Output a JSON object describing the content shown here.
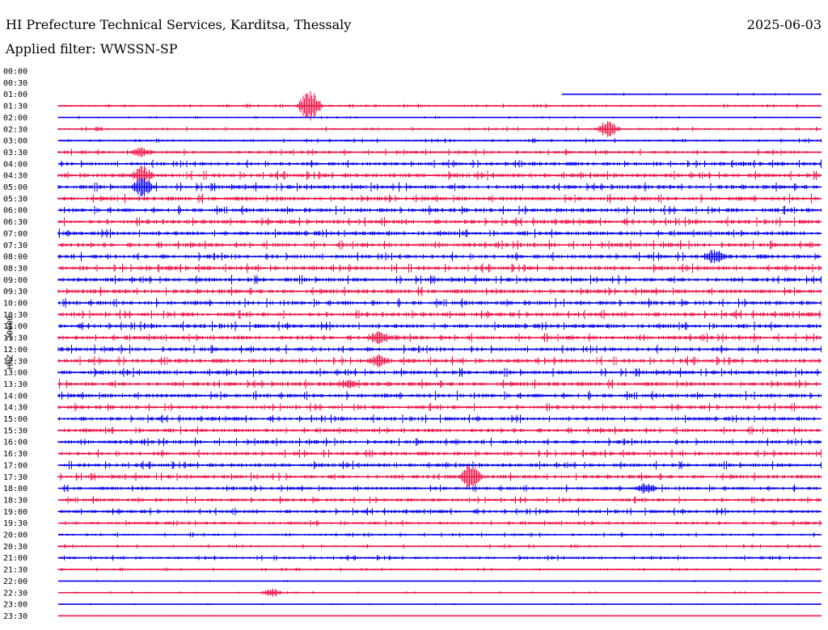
{
  "header": {
    "title": "HI Prefecture Technical Services, Karditsa, Thessaly",
    "date": "2025-06-03",
    "filter": "Applied filter: WWSSN-SP"
  },
  "colors": {
    "even_row": "#0000ee",
    "odd_row": "#ee1144"
  },
  "chart_data": {
    "type": "line",
    "title": "HI Prefecture Technical Services, Karditsa, Thessaly",
    "subtitle": "Applied filter: WWSSN-SP",
    "ylabel": "HNZ - 20000",
    "xlabel": "",
    "grid": false,
    "legend": "none",
    "row_labels": [
      "00:00",
      "00:30",
      "01:00",
      "01:30",
      "02:00",
      "02:30",
      "03:00",
      "03:30",
      "04:00",
      "04:30",
      "05:00",
      "05:30",
      "06:00",
      "06:30",
      "07:00",
      "07:30",
      "08:00",
      "08:30",
      "09:00",
      "09:30",
      "10:00",
      "10:30",
      "11:00",
      "11:30",
      "12:00",
      "12:30",
      "13:00",
      "13:30",
      "14:00",
      "14:30",
      "15:00",
      "15:30",
      "16:00",
      "16:30",
      "17:00",
      "17:30",
      "18:00",
      "18:30",
      "19:00",
      "19:30",
      "20:00",
      "20:30",
      "21:00",
      "21:30",
      "22:00",
      "22:30",
      "23:00",
      "23:30"
    ],
    "row_activity": [
      0,
      0,
      0.3,
      0.5,
      0.3,
      0.5,
      0.5,
      0.7,
      0.9,
      1,
      1,
      1,
      1,
      1,
      1,
      1,
      1,
      1,
      1,
      1,
      1,
      1,
      1,
      1,
      1,
      1,
      1,
      1,
      1,
      0.9,
      0.9,
      0.9,
      0.9,
      0.9,
      0.9,
      0.9,
      0.8,
      0.8,
      0.8,
      0.7,
      0.5,
      0.5,
      0.6,
      0.4,
      0.2,
      0.3,
      0.2,
      0.1
    ],
    "row_start_fraction": [
      1,
      1,
      0.66,
      0,
      0,
      0,
      0,
      0,
      0,
      0,
      0,
      0,
      0,
      0,
      0,
      0,
      0,
      0,
      0,
      0,
      0,
      0,
      0,
      0,
      0,
      0,
      0,
      0,
      0,
      0,
      0,
      0,
      0,
      0,
      0,
      0,
      0,
      0,
      0,
      0,
      0,
      0,
      0,
      0,
      0,
      0,
      0,
      0
    ],
    "events": [
      {
        "row": 3,
        "at": 0.33,
        "amp": 25
      },
      {
        "row": 5,
        "at": 0.72,
        "amp": 12
      },
      {
        "row": 7,
        "at": 0.11,
        "amp": 8
      },
      {
        "row": 9,
        "at": 0.11,
        "amp": 14
      },
      {
        "row": 10,
        "at": 0.11,
        "amp": 14
      },
      {
        "row": 16,
        "at": 0.86,
        "amp": 12
      },
      {
        "row": 23,
        "at": 0.42,
        "amp": 10
      },
      {
        "row": 25,
        "at": 0.42,
        "amp": 10
      },
      {
        "row": 27,
        "at": 0.38,
        "amp": 8
      },
      {
        "row": 35,
        "at": 0.54,
        "amp": 18
      },
      {
        "row": 36,
        "at": 0.77,
        "amp": 8
      },
      {
        "row": 45,
        "at": 0.28,
        "amp": 6
      }
    ]
  }
}
